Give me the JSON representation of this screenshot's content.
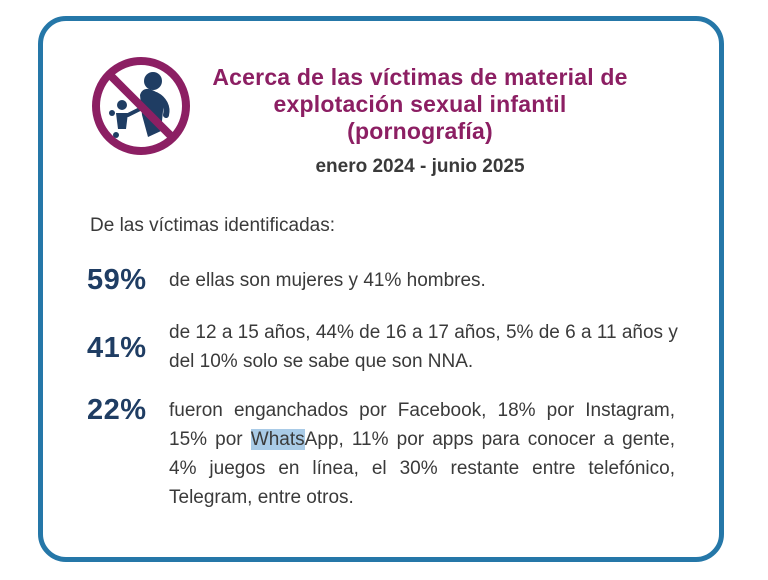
{
  "colors": {
    "border": "#2577a8",
    "title": "#8c1f63",
    "percent": "#1f3d63",
    "text": "#3a3a3a",
    "prohibition_sign": "#8c1f63",
    "figure": "#1f3d63",
    "highlight": "#a9cbe7"
  },
  "logo": {
    "icon": "prohibited-child-exploitation-icon"
  },
  "title": "Acerca de las víctimas de material de explotación sexual infantil (pornografía)",
  "subtitle": "enero 2024 - junio 2025",
  "intro": "De las víctimas identificadas:",
  "stats": [
    {
      "percent": "59%",
      "text": "de ellas son mujeres y 41% hombres."
    },
    {
      "percent": "41%",
      "text": "de 12 a 15 años, 44% de 16 a 17 años, 5% de 6 a 11 años y del 10% solo se sabe que son NNA."
    },
    {
      "percent": "22%",
      "text_before": "fueron enganchados por Facebook, 18% por Instagram, 15% por ",
      "highlighted": "Whats",
      "text_after": "App, 11% por apps para conocer a gente, 4% juegos en línea, el 30% restante entre telefónico, Telegram, entre otros."
    }
  ]
}
